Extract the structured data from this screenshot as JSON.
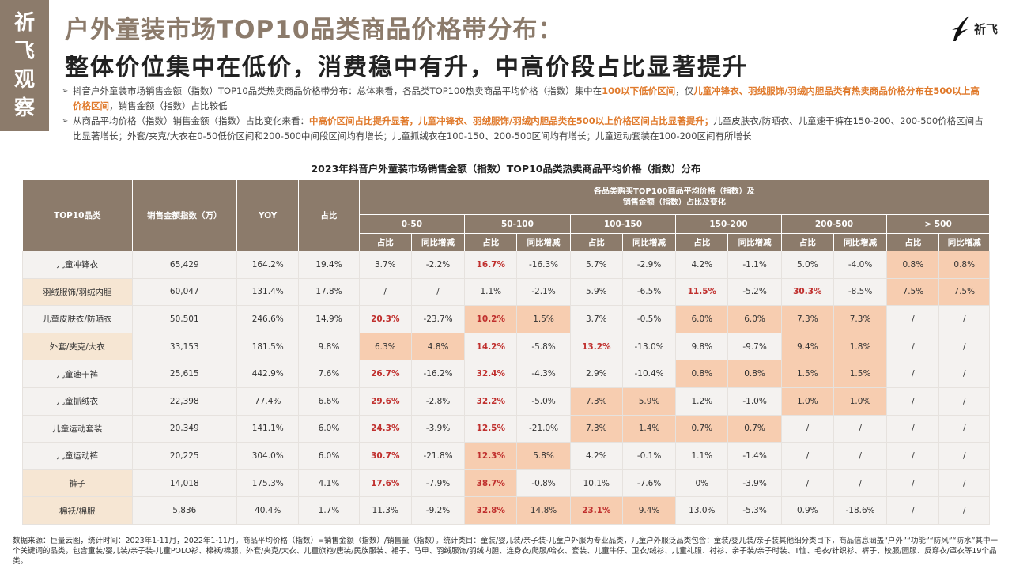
{
  "brand": {
    "chars": [
      "祈",
      "飞",
      "观",
      "察"
    ],
    "logo_text": "祈飞"
  },
  "title": {
    "line1": "户外童装市场TOP10品类商品价格带分布：",
    "line2": "整体价位集中在低价，消费稳中有升，中高价段占比显著提升"
  },
  "bullets": [
    {
      "segments": [
        {
          "text": "抖音户外童装市场销售金额（指数）TOP10品类热卖商品价格带分布：总体来看，各品类TOP100热卖商品平均价格（指数）集中在",
          "hl": false
        },
        {
          "text": "100以下低价区间",
          "hl": true
        },
        {
          "text": "，仅",
          "hl": false
        },
        {
          "text": "儿童冲锋衣、羽绒服饰/羽绒内胆品类有热卖商品价格分布在500以上高价格区间",
          "hl": true
        },
        {
          "text": "，销售金额（指数）占比较低",
          "hl": false
        }
      ]
    },
    {
      "segments": [
        {
          "text": "从商品平均价格（指数）销售金额（指数）占比变化来看：",
          "hl": false
        },
        {
          "text": "中高价区间占比提升显著，儿童冲锋衣、羽绒服饰/羽绒内胆品类在500以上价格区间占比显著提升；",
          "hl": true
        },
        {
          "text": "儿童皮肤衣/防晒衣、儿童速干裤在150-200、200-500价格区间占比显著增长；外套/夹克/大衣在0-50低价区间和200-500中间段区间均有增长；儿童抓绒衣在100-150、200-500区间均有增长；儿童运动套装在100-200区间有所增长",
          "hl": false
        }
      ]
    }
  ],
  "table": {
    "caption": "2023年抖音户外童装市场销售金额（指数）TOP10品类热卖商品平均价格（指数）分布",
    "headers": {
      "category": "TOP10品类",
      "sales": "销售金额指数（万）",
      "yoy": "YOY",
      "share": "占比",
      "group": "各品类购买TOP100商品平均价格（指数）及\n销售金额（指数）占比及变化",
      "ranges": [
        "0-50",
        "50-100",
        "100-150",
        "150-200",
        "200-500",
        "> 500"
      ],
      "sub": [
        "占比",
        "同比增减"
      ]
    },
    "rows": [
      {
        "name": "儿童冲锋衣",
        "sales": "65,429",
        "yoy": "164.2%",
        "share": "19.4%",
        "alt": false,
        "cells": [
          {
            "v": "3.7%"
          },
          {
            "v": "-2.2%"
          },
          {
            "v": "16.7%",
            "b": true
          },
          {
            "v": "-16.3%"
          },
          {
            "v": "5.7%"
          },
          {
            "v": "-2.9%"
          },
          {
            "v": "4.2%"
          },
          {
            "v": "-1.1%"
          },
          {
            "v": "5.0%"
          },
          {
            "v": "-4.0%"
          },
          {
            "v": "0.8%",
            "s": true
          },
          {
            "v": "0.8%",
            "s": true
          }
        ]
      },
      {
        "name": "羽绒服饰/羽绒内胆",
        "sales": "60,047",
        "yoy": "131.4%",
        "share": "17.8%",
        "alt": true,
        "cells": [
          {
            "v": "/"
          },
          {
            "v": "/"
          },
          {
            "v": "1.1%"
          },
          {
            "v": "-2.1%"
          },
          {
            "v": "5.9%"
          },
          {
            "v": "-6.5%"
          },
          {
            "v": "11.5%",
            "b": true
          },
          {
            "v": "-5.2%"
          },
          {
            "v": "30.3%",
            "b": true
          },
          {
            "v": "-8.5%"
          },
          {
            "v": "7.5%",
            "s": true
          },
          {
            "v": "7.5%",
            "s": true
          }
        ]
      },
      {
        "name": "儿童皮肤衣/防晒衣",
        "sales": "50,501",
        "yoy": "246.6%",
        "share": "14.9%",
        "alt": false,
        "cells": [
          {
            "v": "20.3%",
            "b": true
          },
          {
            "v": "-23.7%"
          },
          {
            "v": "10.2%",
            "b": true,
            "s": true
          },
          {
            "v": "1.5%",
            "s": true
          },
          {
            "v": "3.7%"
          },
          {
            "v": "-0.5%"
          },
          {
            "v": "6.0%",
            "s": true
          },
          {
            "v": "6.0%",
            "s": true
          },
          {
            "v": "7.3%",
            "s": true
          },
          {
            "v": "7.3%",
            "s": true
          },
          {
            "v": "/"
          },
          {
            "v": "/"
          }
        ]
      },
      {
        "name": "外套/夹克/大衣",
        "sales": "33,153",
        "yoy": "181.5%",
        "share": "9.8%",
        "alt": true,
        "cells": [
          {
            "v": "6.3%",
            "s": true
          },
          {
            "v": "4.8%",
            "s": true
          },
          {
            "v": "14.2%",
            "b": true
          },
          {
            "v": "-5.8%"
          },
          {
            "v": "13.2%",
            "b": true
          },
          {
            "v": "-13.0%"
          },
          {
            "v": "9.8%"
          },
          {
            "v": "-9.7%"
          },
          {
            "v": "9.4%",
            "s": true
          },
          {
            "v": "1.8%",
            "s": true
          },
          {
            "v": "/"
          },
          {
            "v": "/"
          }
        ]
      },
      {
        "name": "儿童速干裤",
        "sales": "25,615",
        "yoy": "442.9%",
        "share": "7.6%",
        "alt": false,
        "cells": [
          {
            "v": "26.7%",
            "b": true
          },
          {
            "v": "-16.2%"
          },
          {
            "v": "32.4%",
            "b": true
          },
          {
            "v": "-4.3%"
          },
          {
            "v": "2.9%"
          },
          {
            "v": "-10.4%"
          },
          {
            "v": "0.8%",
            "s": true
          },
          {
            "v": "0.8%",
            "s": true
          },
          {
            "v": "1.5%",
            "s": true
          },
          {
            "v": "1.5%",
            "s": true
          },
          {
            "v": "/"
          },
          {
            "v": "/"
          }
        ]
      },
      {
        "name": "儿童抓绒衣",
        "sales": "22,398",
        "yoy": "77.4%",
        "share": "6.6%",
        "alt": false,
        "cells": [
          {
            "v": "29.6%",
            "b": true
          },
          {
            "v": "-2.8%"
          },
          {
            "v": "32.2%",
            "b": true
          },
          {
            "v": "-5.0%"
          },
          {
            "v": "7.3%",
            "s": true
          },
          {
            "v": "5.9%",
            "s": true
          },
          {
            "v": "1.2%"
          },
          {
            "v": "-1.0%"
          },
          {
            "v": "1.0%",
            "s": true
          },
          {
            "v": "1.0%",
            "s": true
          },
          {
            "v": "/"
          },
          {
            "v": "/"
          }
        ]
      },
      {
        "name": "儿童运动套装",
        "sales": "20,349",
        "yoy": "141.1%",
        "share": "6.0%",
        "alt": false,
        "cells": [
          {
            "v": "24.3%",
            "b": true
          },
          {
            "v": "-3.9%"
          },
          {
            "v": "12.5%",
            "b": true
          },
          {
            "v": "-21.0%"
          },
          {
            "v": "7.3%",
            "s": true
          },
          {
            "v": "1.4%",
            "s": true
          },
          {
            "v": "0.7%",
            "s": true
          },
          {
            "v": "0.7%",
            "s": true
          },
          {
            "v": "/"
          },
          {
            "v": "/"
          },
          {
            "v": "/"
          },
          {
            "v": "/"
          }
        ]
      },
      {
        "name": "儿童运动裤",
        "sales": "20,225",
        "yoy": "304.0%",
        "share": "6.0%",
        "alt": false,
        "cells": [
          {
            "v": "30.7%",
            "b": true
          },
          {
            "v": "-21.8%"
          },
          {
            "v": "12.3%",
            "b": true,
            "s": true
          },
          {
            "v": "5.8%",
            "s": true
          },
          {
            "v": "4.2%"
          },
          {
            "v": "-0.1%"
          },
          {
            "v": "1.1%"
          },
          {
            "v": "-1.4%"
          },
          {
            "v": "/"
          },
          {
            "v": "/"
          },
          {
            "v": "/"
          },
          {
            "v": "/"
          }
        ]
      },
      {
        "name": "裤子",
        "sales": "14,018",
        "yoy": "175.3%",
        "share": "4.1%",
        "alt": true,
        "cells": [
          {
            "v": "17.6%",
            "b": true
          },
          {
            "v": "-7.9%"
          },
          {
            "v": "38.7%",
            "b": true,
            "s": true
          },
          {
            "v": "-0.8%"
          },
          {
            "v": "10.1%"
          },
          {
            "v": "-7.6%"
          },
          {
            "v": "0%"
          },
          {
            "v": "-3.9%"
          },
          {
            "v": "/"
          },
          {
            "v": "/"
          },
          {
            "v": "/"
          },
          {
            "v": "/"
          }
        ]
      },
      {
        "name": "棉袄/棉服",
        "sales": "5,836",
        "yoy": "40.4%",
        "share": "1.7%",
        "alt": true,
        "cells": [
          {
            "v": "11.3%"
          },
          {
            "v": "-9.2%"
          },
          {
            "v": "32.8%",
            "b": true,
            "s": true
          },
          {
            "v": "14.8%",
            "s": true
          },
          {
            "v": "23.1%",
            "b": true,
            "s": true
          },
          {
            "v": "9.4%",
            "s": true
          },
          {
            "v": "13.0%"
          },
          {
            "v": "-5.3%"
          },
          {
            "v": "0.9%"
          },
          {
            "v": "-18.6%"
          },
          {
            "v": "/"
          },
          {
            "v": "/"
          }
        ]
      }
    ]
  },
  "footnote": "数据来源：巨量云图，统计时间：2023年1-11月，2022年1-11月。商品平均价格（指数）=销售金额（指数）/销售量（指数）。统计类目：童装/婴儿装/亲子装-儿童户外服为专业品类，儿童户外服泛品类包含：童装/婴儿装/亲子装其他细分类目下，商品信息涵盖“户外”“功能”“防风”“防水”其中一个关键词的品类，包含童装/婴儿装/亲子装-儿童POLO衫、棉袄/棉服、外套/夹克/大衣、儿童旗袍/唐装/民族服装、裙子、马甲、羽绒服饰/羽绒内胆、连身衣/爬服/哈衣、套装、儿童牛仔、卫衣/绒衫、儿童礼服、衬衫、亲子装/亲子时装、T恤、毛衣/针织衫、裤子、校服/园服、反穿衣/罩衣等19个品类。",
  "colors": {
    "brand": "#8c7b6b",
    "highlight": "#e07a2c",
    "bold_value": "#c0302e",
    "shade": "#f7cdb0",
    "name_alt": "#f6e6d3"
  }
}
